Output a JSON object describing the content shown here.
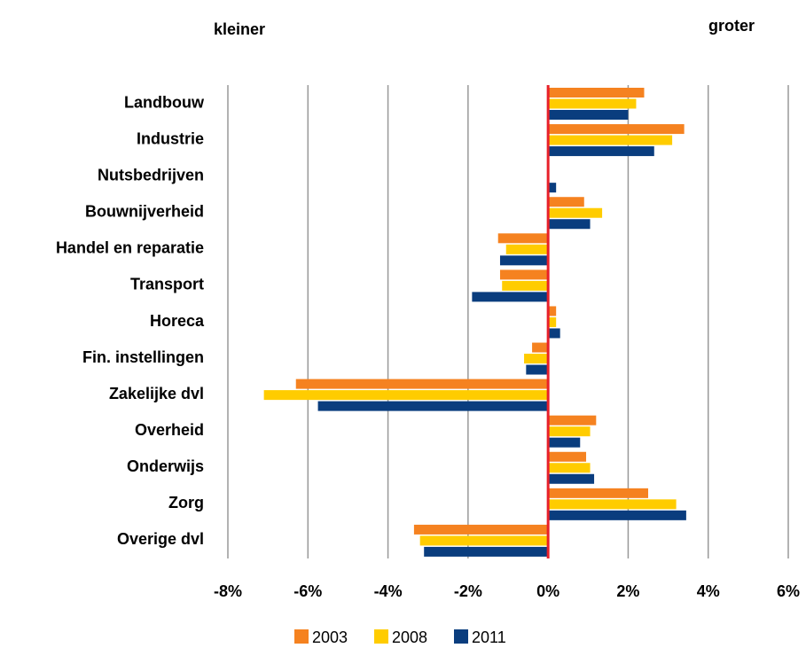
{
  "chart_data": {
    "type": "hbar",
    "annotations": [
      "kleiner",
      "groter"
    ],
    "categories": [
      "Landbouw",
      "Industrie",
      "Nutsbedrijven",
      "Bouwnijverheid",
      "Handel en reparatie",
      "Transport",
      "Horeca",
      "Fin. instellingen",
      "Zakelijke dvl",
      "Overheid",
      "Onderwijs",
      "Zorg",
      "Overige dvl"
    ],
    "series": [
      {
        "name": "2003",
        "color": "#f58220",
        "values": [
          2.4,
          3.4,
          0,
          0.9,
          -1.25,
          -1.2,
          0.2,
          -0.4,
          -6.3,
          1.2,
          0.95,
          2.5,
          -3.35
        ]
      },
      {
        "name": "2008",
        "color": "#ffcc00",
        "values": [
          2.2,
          3.1,
          0,
          1.35,
          -1.05,
          -1.15,
          0.2,
          -0.6,
          -7.1,
          1.05,
          1.05,
          3.2,
          -3.2
        ]
      },
      {
        "name": "2011",
        "color": "#0a3d7e",
        "values": [
          2.0,
          2.65,
          0.2,
          1.05,
          -1.2,
          -1.9,
          0.3,
          -0.55,
          -5.75,
          0.8,
          1.15,
          3.45,
          -3.1
        ]
      }
    ],
    "xlim": [
      -8,
      6
    ],
    "xticks": [
      {
        "value": -8,
        "label": "-8%"
      },
      {
        "value": -6,
        "label": "-6%"
      },
      {
        "value": -4,
        "label": "-4%"
      },
      {
        "value": -2,
        "label": "-2%"
      },
      {
        "value": 0,
        "label": "0%"
      },
      {
        "value": 2,
        "label": "2%"
      },
      {
        "value": 4,
        "label": "4%"
      },
      {
        "value": 6,
        "label": "6%"
      }
    ],
    "grid": true
  }
}
